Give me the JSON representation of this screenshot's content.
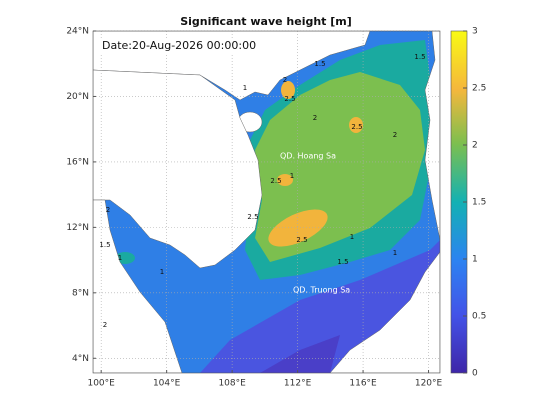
{
  "title": "Significant wave height [m]",
  "date_label": "Date:20-Aug-2026 00:00:00",
  "places": [
    "QD. Hoang Sa",
    "QD. Truong Sa"
  ],
  "map": {
    "lonlim": [
      99.5,
      120.7
    ],
    "latlim": [
      3.1,
      24
    ],
    "lon_ticks": [
      {
        "value": 100,
        "label": "100°E"
      },
      {
        "value": 104,
        "label": "104°E"
      },
      {
        "value": 108,
        "label": "108°E"
      },
      {
        "value": 112,
        "label": "112°E"
      },
      {
        "value": 116,
        "label": "116°E"
      },
      {
        "value": 120,
        "label": "120°E"
      }
    ],
    "lat_ticks": [
      {
        "value": 4,
        "label": "4°N"
      },
      {
        "value": 8,
        "label": "8°N"
      },
      {
        "value": 12,
        "label": "12°N"
      },
      {
        "value": 16,
        "label": "16°N"
      },
      {
        "value": 20,
        "label": "20°N"
      },
      {
        "value": 24,
        "label": "24°N"
      }
    ]
  },
  "colorbar": {
    "lim": [
      0,
      3
    ],
    "ticks": [
      0,
      0.5,
      1,
      1.5,
      2,
      2.5,
      3
    ]
  },
  "contour_labels": [
    2,
    2.5,
    1.5,
    1.5,
    1,
    2,
    2.5,
    2,
    1,
    2.5,
    2.5,
    2.5,
    1,
    1.5,
    2,
    1.5,
    1,
    1,
    2,
    1
  ]
}
